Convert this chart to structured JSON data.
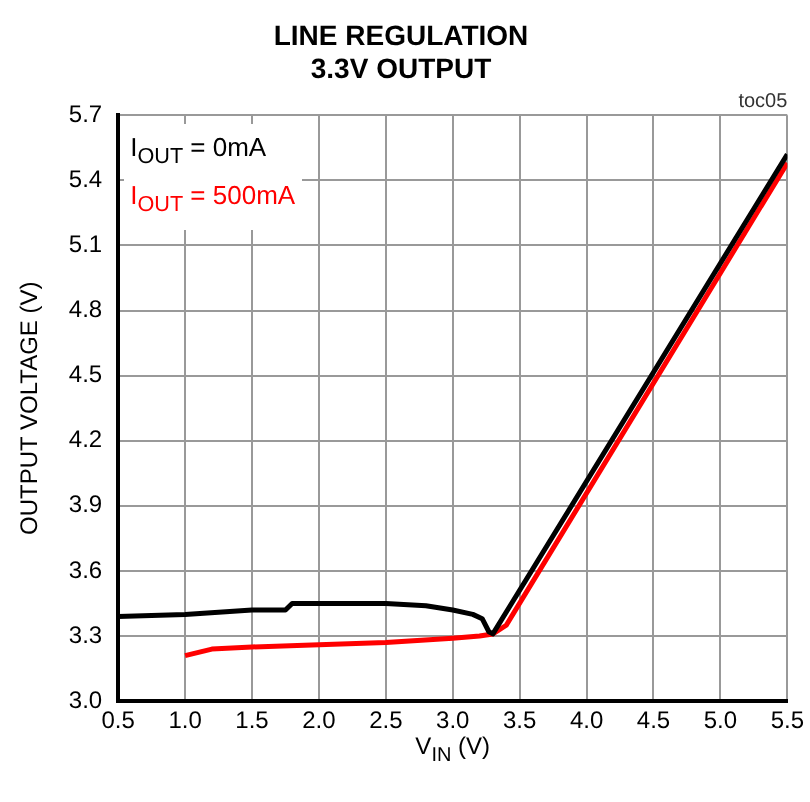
{
  "chart_data": {
    "type": "line",
    "title": "LINE REGULATION\n3.3V OUTPUT",
    "xlabel": "V$_{IN}$ (V)",
    "ylabel": "OUTPUT VOLTAGE (V)",
    "annotations": [
      "toc05"
    ],
    "series": [
      {
        "name": "I$_{OUT}$ = 0mA",
        "color": "#000000",
        "x": [
          0.5,
          1.0,
          1.5,
          1.75,
          1.8,
          2.0,
          2.5,
          2.8,
          3.0,
          3.15,
          3.22,
          3.27,
          3.3,
          5.5
        ],
        "values": [
          3.39,
          3.4,
          3.42,
          3.42,
          3.45,
          3.45,
          3.45,
          3.44,
          3.42,
          3.4,
          3.38,
          3.32,
          3.31,
          5.52
        ]
      },
      {
        "name": "I$_{OUT}$ = 500mA",
        "color": "#ff0000",
        "x": [
          1.0,
          1.2,
          1.5,
          2.0,
          2.5,
          3.0,
          3.2,
          3.3,
          3.4,
          5.5
        ],
        "values": [
          3.21,
          3.24,
          3.25,
          3.26,
          3.27,
          3.29,
          3.3,
          3.31,
          3.35,
          5.48
        ]
      }
    ],
    "xlim": [
      0.5,
      5.5
    ],
    "xticks": [
      0.5,
      {
        "value": 1,
        "label": "1.0"
      },
      1.5,
      {
        "value": 2,
        "label": "2.0"
      },
      2.5,
      {
        "value": 3,
        "label": "3.0"
      },
      3.5,
      {
        "value": 4,
        "label": "4.0"
      },
      4.5,
      {
        "value": 5,
        "label": "5.0"
      },
      5.5
    ],
    "ylim": [
      3.0,
      5.7
    ],
    "yticks": [
      {
        "value": 3,
        "label": "3.0"
      },
      3.3,
      3.6,
      3.9,
      4.2,
      4.5,
      4.8,
      5.1,
      5.4,
      5.7
    ],
    "grid": true,
    "legend": "top left",
    "marker": "none",
    "line_style": "solid"
  }
}
